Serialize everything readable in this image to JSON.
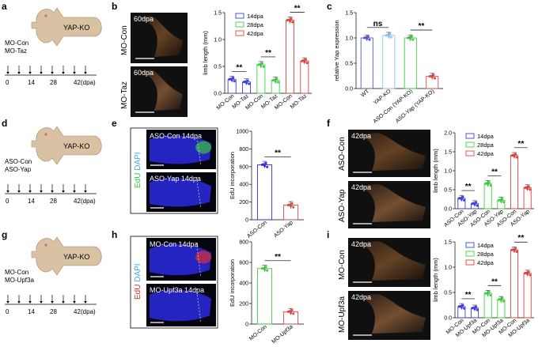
{
  "panels": {
    "a": {
      "letter": "a",
      "conditions": [
        "MO-Con",
        "MO-Taz"
      ],
      "ko": "YAP-KO",
      "ticks": [
        "0",
        "14",
        "28",
        "42"
      ],
      "unit": "(dpa)"
    },
    "b": {
      "letter": "b",
      "img_top": "MO-Con",
      "img_bottom": "MO-Taz",
      "time_top": "60dpa",
      "time_bottom": "60dpa"
    },
    "c": {
      "letter": "c"
    },
    "d": {
      "letter": "d",
      "conditions": [
        "ASO-Con",
        "ASO-Yap"
      ],
      "ko": "YAP-KO",
      "ticks": [
        "0",
        "14",
        "28",
        "42"
      ],
      "unit": "(dpa)"
    },
    "e": {
      "letter": "e",
      "stain_a": "EdU",
      "stain_b": "DAPI",
      "img_top": "ASO-Con 14dpa",
      "img_bottom": "ASO-Yap 14dpa"
    },
    "f": {
      "letter": "f",
      "img_top": "ASO-Con",
      "img_bottom": "ASO-Yap",
      "time_top": "42dpa",
      "time_bottom": "42dpa"
    },
    "g": {
      "letter": "g",
      "conditions": [
        "MO-Con",
        "MO-Upf3a"
      ],
      "ko": "YAP-KO",
      "ticks": [
        "0",
        "14",
        "28",
        "42"
      ],
      "unit": "(dpa)"
    },
    "h": {
      "letter": "h",
      "stain_a": "EdU",
      "stain_b": "DAPI",
      "img_top": "MO-Con 14dpa",
      "img_bottom": "MO-Upf3a 14dpa"
    },
    "i": {
      "letter": "i",
      "img_top": "MO-Con",
      "img_bottom": "MO-Upf3a",
      "time_top": "42dpa",
      "time_bottom": "42dpa"
    }
  },
  "colors": {
    "d14": "#3d3de8",
    "d28": "#3fd43f",
    "d42": "#e84040",
    "c_wt": "#4a5bd6",
    "c_yapko": "#8ec8f2",
    "c_asocon": "#42c942",
    "c_asoyap": "#e04848",
    "red_pts": "#e04848",
    "green_pts": "#42c942",
    "dapi": "#2a2ae0",
    "edu_green": "#39c839",
    "edu_red": "#e03030"
  },
  "chart_data": [
    {
      "id": "b",
      "type": "bar",
      "ylabel": "limb length (mm)",
      "ylim": [
        0,
        1.5
      ],
      "yticks": [
        "0.0",
        "0.5",
        "1.0",
        "1.5"
      ],
      "legend": [
        "14dpa",
        "28dpa",
        "42dpa"
      ],
      "categories": [
        "MO-Con",
        "MO-Taz",
        "MO-Con",
        "MO-Taz",
        "MO-Con",
        "MO-Taz"
      ],
      "values": [
        0.26,
        0.21,
        0.53,
        0.24,
        1.36,
        0.6
      ],
      "series_of": [
        "14dpa",
        "14dpa",
        "28dpa",
        "28dpa",
        "42dpa",
        "42dpa"
      ],
      "significance": [
        "**",
        "**",
        "**"
      ]
    },
    {
      "id": "c",
      "type": "bar",
      "ylabel": "relative Yap expression",
      "ylim": [
        0,
        1.5
      ],
      "yticks": [
        "0.0",
        "0.5",
        "1.0",
        "1.5"
      ],
      "categories": [
        "WT",
        "YAP-KO",
        "ASO-Con (YAP-KO)",
        "ASO-Yap (YAP-KO)"
      ],
      "values": [
        1.0,
        1.05,
        1.0,
        0.24
      ],
      "significance": [
        "ns",
        "**"
      ]
    },
    {
      "id": "e",
      "type": "bar",
      "ylabel": "EdU incorporation",
      "ylim": [
        0,
        1000
      ],
      "yticks": [
        "0",
        "200",
        "400",
        "600",
        "800",
        "1000"
      ],
      "categories": [
        "ASO-Con",
        "ASO-Yap"
      ],
      "values": [
        620,
        165
      ],
      "significance": [
        "**"
      ]
    },
    {
      "id": "f",
      "type": "bar",
      "ylabel": "limb length (mm)",
      "ylim": [
        0,
        2.0
      ],
      "yticks": [
        "0.0",
        "0.5",
        "1.0",
        "1.5",
        "2.0"
      ],
      "legend": [
        "14dpa",
        "28dpa",
        "42dpa"
      ],
      "categories": [
        "ASO-Con",
        "ASO-Yap",
        "ASO-Con",
        "ASO-Yap",
        "ASO-Con",
        "ASO-Yap"
      ],
      "values": [
        0.27,
        0.13,
        0.66,
        0.22,
        1.4,
        0.55
      ],
      "series_of": [
        "14dpa",
        "14dpa",
        "28dpa",
        "28dpa",
        "42dpa",
        "42dpa"
      ],
      "significance": [
        "**",
        "**",
        "**"
      ]
    },
    {
      "id": "h",
      "type": "bar",
      "ylabel": "EdU incorporation",
      "ylim": [
        0,
        800
      ],
      "yticks": [
        "0",
        "200",
        "400",
        "600",
        "800"
      ],
      "categories": [
        "MO-Con",
        "MO-Upf3a"
      ],
      "values": [
        540,
        120
      ],
      "significance": [
        "**"
      ]
    },
    {
      "id": "i",
      "type": "bar",
      "ylabel": "limb length (mm)",
      "ylim": [
        0,
        1.5
      ],
      "yticks": [
        "0.0",
        "0.5",
        "1.0",
        "1.5"
      ],
      "legend": [
        "14dpa",
        "28dpa",
        "42dpa"
      ],
      "categories": [
        "MO-Con",
        "MO-Upf3a",
        "MO-Con",
        "MO-Upf3a",
        "MO-Con",
        "MO-Upf3a"
      ],
      "values": [
        0.22,
        0.19,
        0.48,
        0.36,
        1.34,
        0.88
      ],
      "series_of": [
        "14dpa",
        "14dpa",
        "28dpa",
        "28dpa",
        "42dpa",
        "42dpa"
      ],
      "significance": [
        "**",
        "**",
        "**"
      ]
    }
  ]
}
